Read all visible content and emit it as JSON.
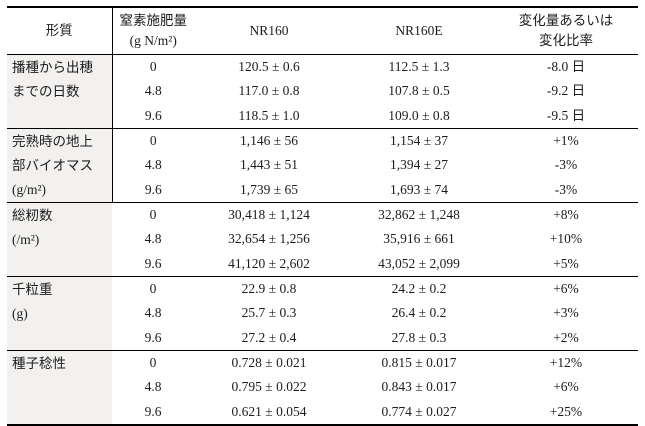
{
  "table": {
    "header": {
      "trait": "形質",
      "nitrogen_line1": "窒素施肥量",
      "nitrogen_line2": "(g N/m²)",
      "nr160": "NR160",
      "nr160e": "NR160E",
      "change_line1": "変化量あるいは",
      "change_line2": "変化比率"
    },
    "groups": [
      {
        "trait_lines": [
          "播種から出穂",
          "までの日数",
          ""
        ],
        "rows": [
          {
            "n": "0",
            "nr160": "120.5 ± 0.6",
            "nr160e": "112.5 ± 1.3",
            "change": "-8.0 日"
          },
          {
            "n": "4.8",
            "nr160": "117.0 ± 0.8",
            "nr160e": "107.8 ± 0.5",
            "change": "-9.2 日"
          },
          {
            "n": "9.6",
            "nr160": "118.5 ± 1.0",
            "nr160e": "109.0 ± 0.8",
            "change": "-9.5 日"
          }
        ]
      },
      {
        "trait_lines": [
          "完熟時の地上",
          "部バイオマス",
          "(g/m²)"
        ],
        "rows": [
          {
            "n": "0",
            "nr160": "1,146 ± 56",
            "nr160e": "1,154 ± 37",
            "change": "+1%"
          },
          {
            "n": "4.8",
            "nr160": "1,443 ± 51",
            "nr160e": "1,394 ± 27",
            "change": "-3%"
          },
          {
            "n": "9.6",
            "nr160": "1,739 ± 65",
            "nr160e": "1,693 ± 74",
            "change": "-3%"
          }
        ]
      },
      {
        "trait_lines": [
          "総籾数",
          "(/m²)",
          ""
        ],
        "rows": [
          {
            "n": "0",
            "nr160": "30,418 ± 1,124",
            "nr160e": "32,862 ± 1,248",
            "change": "+8%"
          },
          {
            "n": "4.8",
            "nr160": "32,654 ± 1,256",
            "nr160e": "35,916 ± 661",
            "change": "+10%"
          },
          {
            "n": "9.6",
            "nr160": "41,120 ± 2,602",
            "nr160e": "43,052 ± 2,099",
            "change": "+5%"
          }
        ]
      },
      {
        "trait_lines": [
          "千粒重",
          "(g)",
          ""
        ],
        "rows": [
          {
            "n": "0",
            "nr160": "22.9 ± 0.8",
            "nr160e": "24.2 ± 0.2",
            "change": "+6%"
          },
          {
            "n": "4.8",
            "nr160": "25.7 ± 0.3",
            "nr160e": "26.4 ± 0.2",
            "change": "+3%"
          },
          {
            "n": "9.6",
            "nr160": "27.2 ± 0.4",
            "nr160e": "27.8 ± 0.3",
            "change": "+2%"
          }
        ]
      },
      {
        "trait_lines": [
          "種子稔性",
          "",
          ""
        ],
        "rows": [
          {
            "n": "0",
            "nr160": "0.728 ± 0.021",
            "nr160e": "0.815 ± 0.017",
            "change": "+12%"
          },
          {
            "n": "4.8",
            "nr160": "0.795 ± 0.022",
            "nr160e": "0.843 ± 0.017",
            "change": "+6%"
          },
          {
            "n": "9.6",
            "nr160": "0.621 ± 0.054",
            "nr160e": "0.774 ± 0.027",
            "change": "+25%"
          }
        ]
      }
    ]
  }
}
